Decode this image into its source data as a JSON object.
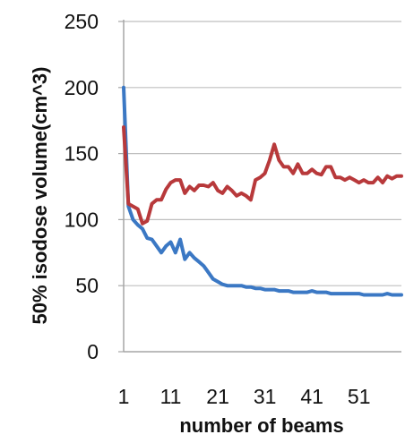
{
  "chart_data": {
    "type": "line",
    "title": "",
    "xlabel": "number of beams",
    "ylabel": "50% isodose  volume(cm^3)",
    "xlim": [
      1,
      60
    ],
    "ylim": [
      0,
      250
    ],
    "x_ticks": [
      1,
      11,
      21,
      31,
      41,
      51
    ],
    "y_ticks": [
      0,
      50,
      100,
      150,
      200,
      250
    ],
    "grid": "horizontal",
    "legend": "none",
    "series": [
      {
        "color": "#3b78c4",
        "x": [
          1,
          2,
          3,
          4,
          5,
          6,
          7,
          8,
          9,
          10,
          11,
          12,
          13,
          14,
          15,
          16,
          17,
          18,
          19,
          20,
          21,
          22,
          23,
          24,
          25,
          26,
          27,
          28,
          29,
          30,
          31,
          32,
          33,
          34,
          35,
          36,
          37,
          38,
          39,
          40,
          41,
          42,
          43,
          44,
          45,
          46,
          47,
          48,
          49,
          50,
          51,
          52,
          53,
          54,
          55,
          56,
          57,
          58,
          59,
          60
        ],
        "values": [
          200,
          110,
          100,
          96,
          93,
          86,
          85,
          80,
          75,
          80,
          83,
          75,
          85,
          70,
          75,
          71,
          68,
          65,
          60,
          55,
          53,
          51,
          50,
          50,
          50,
          50,
          49,
          49,
          48,
          48,
          47,
          47,
          47,
          46,
          46,
          46,
          45,
          45,
          45,
          45,
          46,
          45,
          45,
          45,
          44,
          44,
          44,
          44,
          44,
          44,
          44,
          43,
          43,
          43,
          43,
          43,
          44,
          43,
          43,
          43
        ]
      },
      {
        "color": "#b8393b",
        "x": [
          1,
          2,
          3,
          4,
          5,
          6,
          7,
          8,
          9,
          10,
          11,
          12,
          13,
          14,
          15,
          16,
          17,
          18,
          19,
          20,
          21,
          22,
          23,
          24,
          25,
          26,
          27,
          28,
          29,
          30,
          31,
          32,
          33,
          34,
          35,
          36,
          37,
          38,
          39,
          40,
          41,
          42,
          43,
          44,
          45,
          46,
          47,
          48,
          49,
          50,
          51,
          52,
          53,
          54,
          55,
          56,
          57,
          58,
          59,
          60
        ],
        "values": [
          170,
          112,
          110,
          108,
          97,
          99,
          112,
          115,
          115,
          123,
          128,
          130,
          130,
          120,
          125,
          122,
          126,
          126,
          125,
          128,
          122,
          120,
          125,
          122,
          118,
          120,
          118,
          115,
          130,
          132,
          135,
          145,
          157,
          145,
          140,
          140,
          135,
          142,
          135,
          135,
          138,
          135,
          134,
          140,
          140,
          132,
          132,
          130,
          132,
          130,
          128,
          130,
          128,
          128,
          132,
          128,
          133,
          131,
          133,
          133
        ]
      }
    ]
  }
}
